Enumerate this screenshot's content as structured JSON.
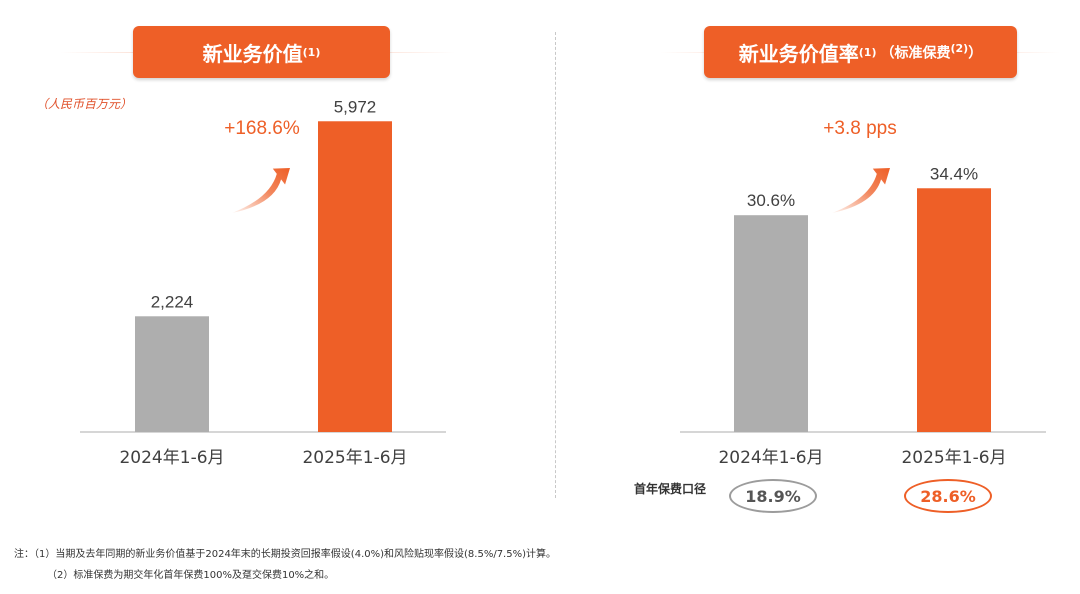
{
  "left": {
    "title": "新业务价值",
    "title_sup": "(1)",
    "unit": "（人民币百万元）"
  },
  "right": {
    "title": "新业务价值率",
    "title_sup": "(1)",
    "subtitle": "（标准保费",
    "subtitle_sup": "(2)",
    "subtitle_close": "）",
    "first_year_label": "首年保费口径",
    "first_year_values": [
      "18.9%",
      "28.6%"
    ]
  },
  "colors": {
    "accent": "#ee5f27",
    "gray": "#aeaeae",
    "axis": "#c9c9c9",
    "label": "#404040"
  },
  "chart_data": [
    {
      "type": "bar",
      "categories": [
        "2024年1-6月",
        "2025年1-6月"
      ],
      "values": [
        2224,
        5972
      ],
      "value_labels": [
        "2,224",
        "5,972"
      ],
      "growth_label": "+168.6%",
      "ylim": [
        0,
        6400
      ]
    },
    {
      "type": "bar",
      "categories": [
        "2024年1-6月",
        "2025年1-6月"
      ],
      "values": [
        30.6,
        34.4
      ],
      "value_labels": [
        "30.6%",
        "34.4%"
      ],
      "growth_label": "+3.8 pps",
      "ylim": [
        0,
        47
      ]
    }
  ],
  "notes": [
    "注：（1）当期及去年同期的新业务价值基于2024年末的长期投资回报率假设(4.0%)和风险贴现率假设(8.5%/7.5%)计算。",
    "（2）标准保费为期交年化首年保费100%及趸交保费10%之和。"
  ]
}
